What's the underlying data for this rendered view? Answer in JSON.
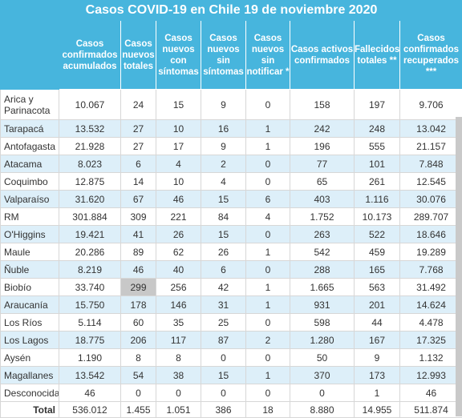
{
  "title": "Casos COVID-19 en Chile 19 de noviembre 2020",
  "columns": [
    "Casos confirmados acumulados",
    "Casos nuevos totales",
    "Casos nuevos con síntomas",
    "Casos nuevos sin síntomas",
    "Casos nuevos sin notificar *",
    "Casos activos confirmados",
    "Fallecidos totales **",
    "Casos confirmados recuperados ***"
  ],
  "rows": [
    {
      "region": "Arica y Parinacota",
      "values": [
        "10.067",
        "24",
        "15",
        "9",
        "0",
        "158",
        "197",
        "9.706"
      ]
    },
    {
      "region": "Tarapacá",
      "values": [
        "13.532",
        "27",
        "10",
        "16",
        "1",
        "242",
        "248",
        "13.042"
      ]
    },
    {
      "region": "Antofagasta",
      "values": [
        "21.928",
        "27",
        "17",
        "9",
        "1",
        "196",
        "555",
        "21.157"
      ]
    },
    {
      "region": "Atacama",
      "values": [
        "8.023",
        "6",
        "4",
        "2",
        "0",
        "77",
        "101",
        "7.848"
      ]
    },
    {
      "region": "Coquimbo",
      "values": [
        "12.875",
        "14",
        "10",
        "4",
        "0",
        "65",
        "261",
        "12.545"
      ]
    },
    {
      "region": "Valparaíso",
      "values": [
        "31.620",
        "67",
        "46",
        "15",
        "6",
        "403",
        "1.116",
        "30.076"
      ]
    },
    {
      "region": "RM",
      "values": [
        "301.884",
        "309",
        "221",
        "84",
        "4",
        "1.752",
        "10.173",
        "289.707"
      ]
    },
    {
      "region": "O'Higgins",
      "values": [
        "19.421",
        "41",
        "26",
        "15",
        "0",
        "263",
        "522",
        "18.646"
      ]
    },
    {
      "region": "Maule",
      "values": [
        "20.286",
        "89",
        "62",
        "26",
        "1",
        "542",
        "459",
        "19.289"
      ]
    },
    {
      "region": "Ñuble",
      "values": [
        "8.219",
        "46",
        "40",
        "6",
        "0",
        "288",
        "165",
        "7.768"
      ]
    },
    {
      "region": "Biobío",
      "values": [
        "33.740",
        "299",
        "256",
        "42",
        "1",
        "1.665",
        "563",
        "31.492"
      ]
    },
    {
      "region": "Araucanía",
      "values": [
        "15.750",
        "178",
        "146",
        "31",
        "1",
        "931",
        "201",
        "14.624"
      ]
    },
    {
      "region": "Los Ríos",
      "values": [
        "5.114",
        "60",
        "35",
        "25",
        "0",
        "598",
        "44",
        "4.478"
      ]
    },
    {
      "region": "Los Lagos",
      "values": [
        "18.775",
        "206",
        "117",
        "87",
        "2",
        "1.280",
        "167",
        "17.325"
      ]
    },
    {
      "region": "Aysén",
      "values": [
        "1.190",
        "8",
        "8",
        "0",
        "0",
        "50",
        "9",
        "1.132"
      ]
    },
    {
      "region": "Magallanes",
      "values": [
        "13.542",
        "54",
        "38",
        "15",
        "1",
        "370",
        "173",
        "12.993"
      ]
    },
    {
      "region": "Desconocida",
      "values": [
        "46",
        "0",
        "0",
        "0",
        "0",
        "0",
        "1",
        "46"
      ]
    }
  ],
  "total": {
    "label": "Total",
    "values": [
      "536.012",
      "1.455",
      "1.051",
      "386",
      "18",
      "8.880",
      "14.955",
      "511.874"
    ]
  }
}
